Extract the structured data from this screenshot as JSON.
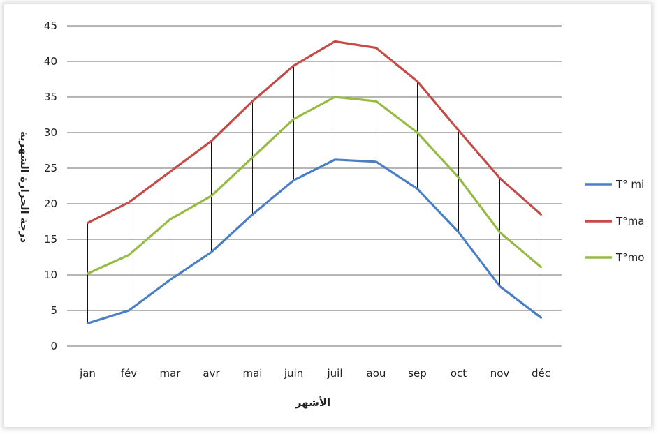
{
  "chart_data": {
    "type": "line",
    "title": "",
    "xlabel": "الأشهر",
    "ylabel": "درجة الحرارة الشهرية",
    "categories": [
      "jan",
      "fév",
      "mar",
      "avr",
      "mai",
      "juin",
      "juil",
      "aou",
      "sep",
      "oct",
      "nov",
      "déc"
    ],
    "ylim": [
      0,
      45
    ],
    "yticks": [
      0,
      5,
      10,
      15,
      20,
      25,
      30,
      35,
      40,
      45
    ],
    "grid": true,
    "legend_position": "right",
    "series": [
      {
        "name": "T° mi",
        "color": "#4a7fc6",
        "values": [
          3.2,
          5,
          9.3,
          13.2,
          18.5,
          23.3,
          26.2,
          25.9,
          22.1,
          16,
          8.4,
          4
        ]
      },
      {
        "name": "T°ma",
        "color": "#c44b47",
        "values": [
          17.3,
          20.2,
          24.5,
          28.8,
          34.4,
          39.4,
          42.8,
          41.9,
          37.2,
          30.3,
          23.6,
          18.5
        ]
      },
      {
        "name": "T°mo",
        "color": "#96bb44",
        "values": [
          10.2,
          12.8,
          17.8,
          21.1,
          26.5,
          31.9,
          35,
          34.4,
          30,
          23.7,
          16,
          11.1
        ]
      }
    ]
  }
}
